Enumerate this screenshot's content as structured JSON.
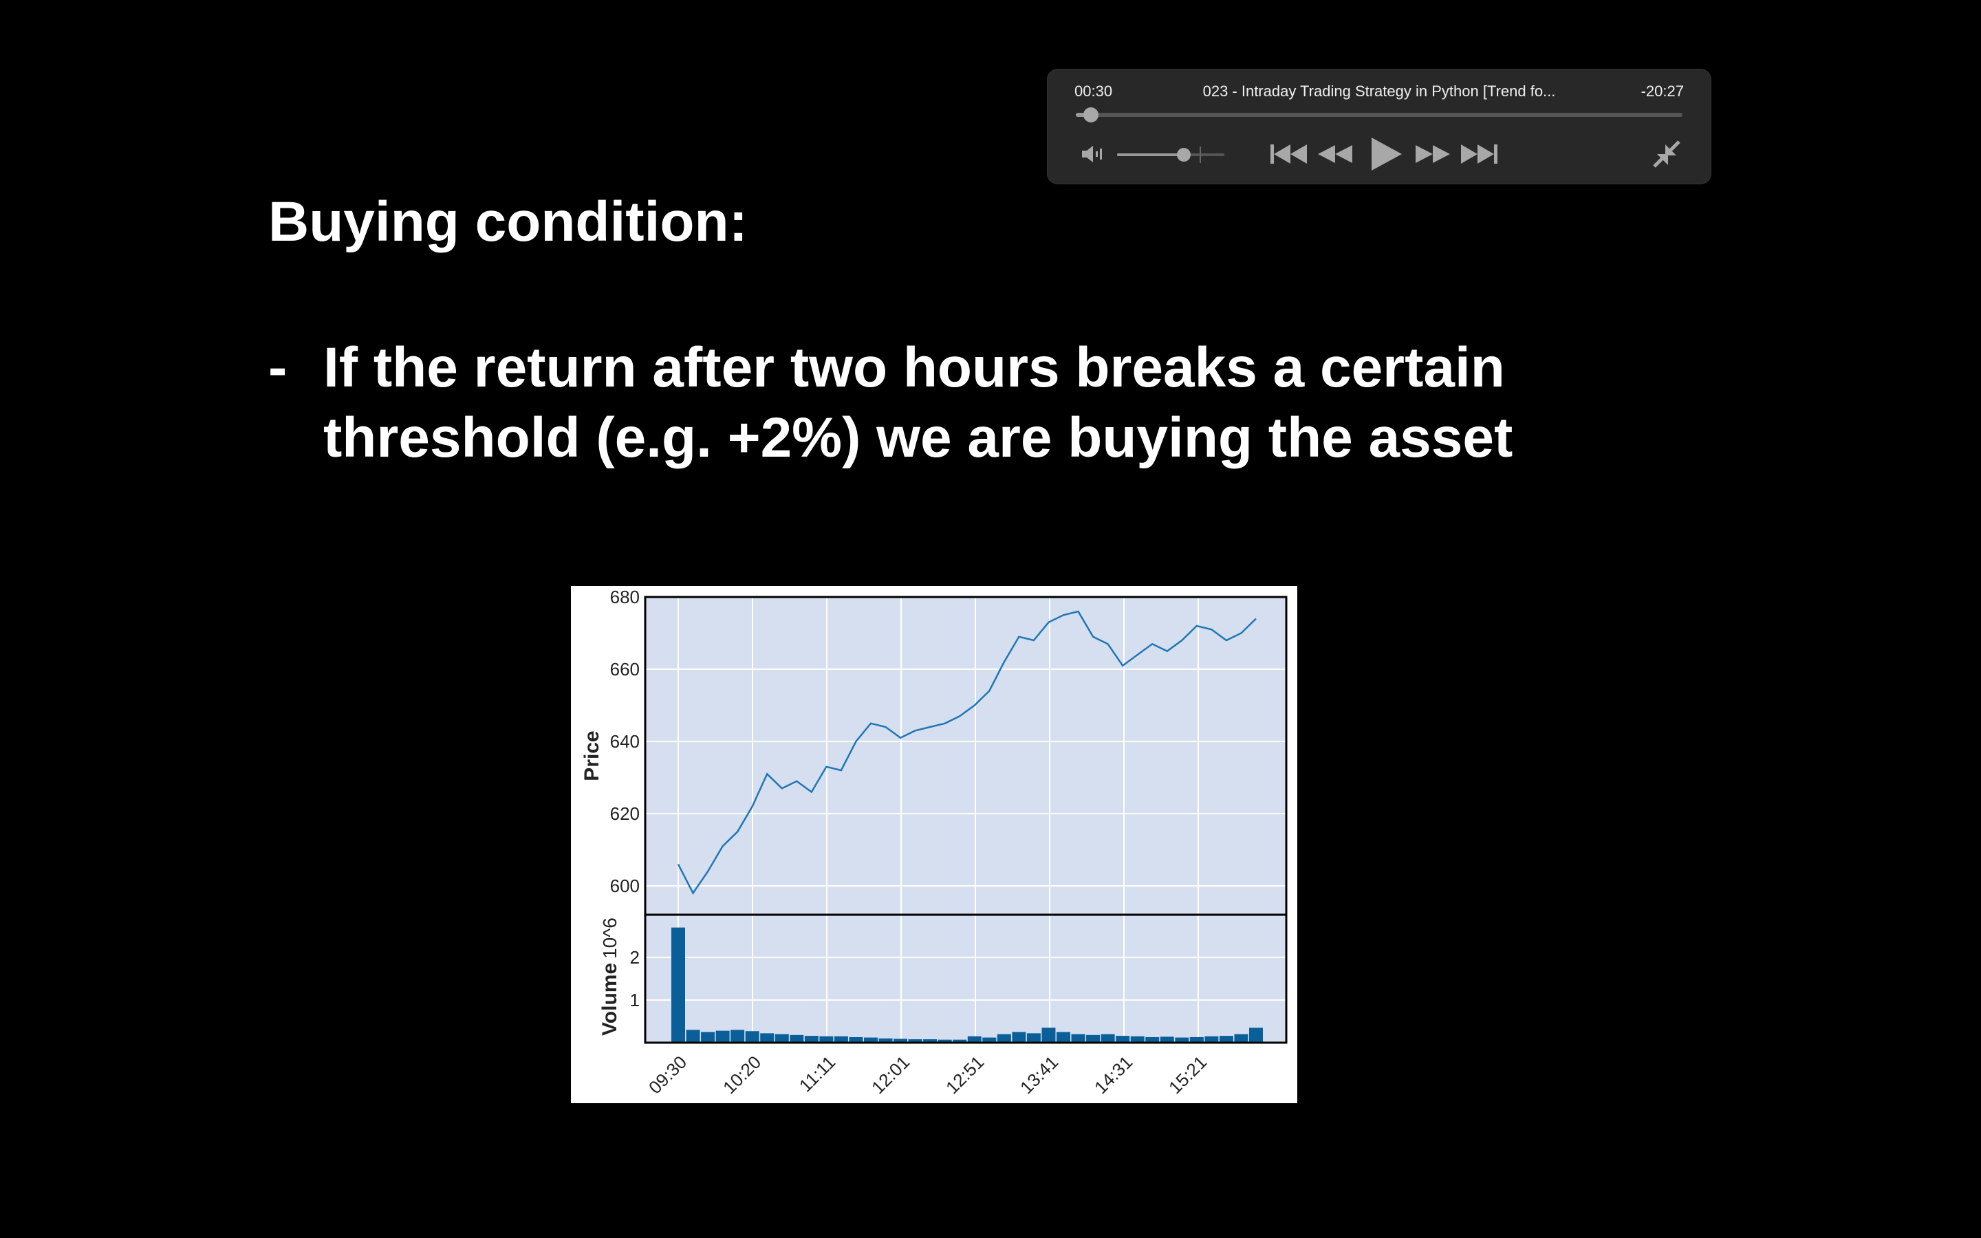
{
  "player": {
    "elapsed": "00:30",
    "remaining": "-20:27",
    "title": "023 - Intraday Trading Strategy in Python [Trend fo...",
    "progress_fraction": 0.025,
    "volume_fraction": 0.62,
    "icons": {
      "mute": "speaker-muted-icon",
      "skip_back": "skip-back-icon",
      "rewind": "rewind-icon",
      "play": "play-icon",
      "forward": "fast-forward-icon",
      "skip_forward": "skip-forward-icon",
      "exit_fullscreen": "exit-fullscreen-icon"
    },
    "colors": {
      "background": "#282828",
      "icon": "#a8a8a8"
    }
  },
  "slide": {
    "title": "Buying condition:",
    "bullet_dash": "-",
    "bullet_line1": "If the return after two hours breaks a certain",
    "bullet_line2": "threshold (e.g. +2%) we are buying the asset"
  },
  "chart_data": [
    {
      "type": "line",
      "ylabel": "Price",
      "ylim": [
        592,
        680
      ],
      "yticks": [
        600,
        620,
        640,
        660,
        680
      ],
      "grid": true,
      "color": "#1f77b4",
      "background": "#d6dfef",
      "x": [
        "09:30",
        "09:40",
        "09:50",
        "10:00",
        "10:10",
        "10:20",
        "10:30",
        "10:40",
        "10:50",
        "11:00",
        "11:10",
        "11:20",
        "11:30",
        "11:40",
        "11:50",
        "12:00",
        "12:10",
        "12:20",
        "12:30",
        "12:40",
        "12:50",
        "13:00",
        "13:10",
        "13:20",
        "13:30",
        "13:40",
        "13:50",
        "14:00",
        "14:10",
        "14:20",
        "14:30",
        "14:40",
        "14:50",
        "15:00",
        "15:10",
        "15:20",
        "15:30",
        "15:40",
        "15:50",
        "16:00"
      ],
      "values": [
        606,
        598,
        604,
        611,
        615,
        622,
        631,
        627,
        629,
        626,
        633,
        632,
        640,
        645,
        644,
        641,
        643,
        644,
        645,
        647,
        650,
        654,
        662,
        669,
        668,
        673,
        675,
        676,
        669,
        667,
        661,
        664,
        667,
        665,
        668,
        672,
        671,
        668,
        670,
        674
      ]
    },
    {
      "type": "bar",
      "ylabel": "Volume",
      "yscale_label": "10^6",
      "ylim": [
        0,
        3
      ],
      "yticks": [
        1,
        2
      ],
      "grid": true,
      "color": "#0b5f98",
      "background": "#d6dfef",
      "xticks": [
        "09:30",
        "10:20",
        "11:11",
        "12:01",
        "12:51",
        "13:41",
        "14:31",
        "15:21"
      ],
      "x": [
        "09:30",
        "09:40",
        "09:50",
        "10:00",
        "10:10",
        "10:20",
        "10:30",
        "10:40",
        "10:50",
        "11:00",
        "11:10",
        "11:20",
        "11:30",
        "11:40",
        "11:50",
        "12:00",
        "12:10",
        "12:20",
        "12:30",
        "12:40",
        "12:50",
        "13:00",
        "13:10",
        "13:20",
        "13:30",
        "13:40",
        "13:50",
        "14:00",
        "14:10",
        "14:20",
        "14:30",
        "14:40",
        "14:50",
        "15:00",
        "15:10",
        "15:20",
        "15:30",
        "15:40",
        "15:50",
        "16:00"
      ],
      "values": [
        2.7,
        0.3,
        0.25,
        0.28,
        0.3,
        0.27,
        0.22,
        0.2,
        0.18,
        0.16,
        0.15,
        0.15,
        0.13,
        0.12,
        0.1,
        0.09,
        0.08,
        0.08,
        0.07,
        0.07,
        0.15,
        0.12,
        0.2,
        0.25,
        0.22,
        0.35,
        0.25,
        0.2,
        0.18,
        0.2,
        0.16,
        0.15,
        0.13,
        0.14,
        0.12,
        0.13,
        0.15,
        0.16,
        0.2,
        0.35
      ]
    }
  ]
}
